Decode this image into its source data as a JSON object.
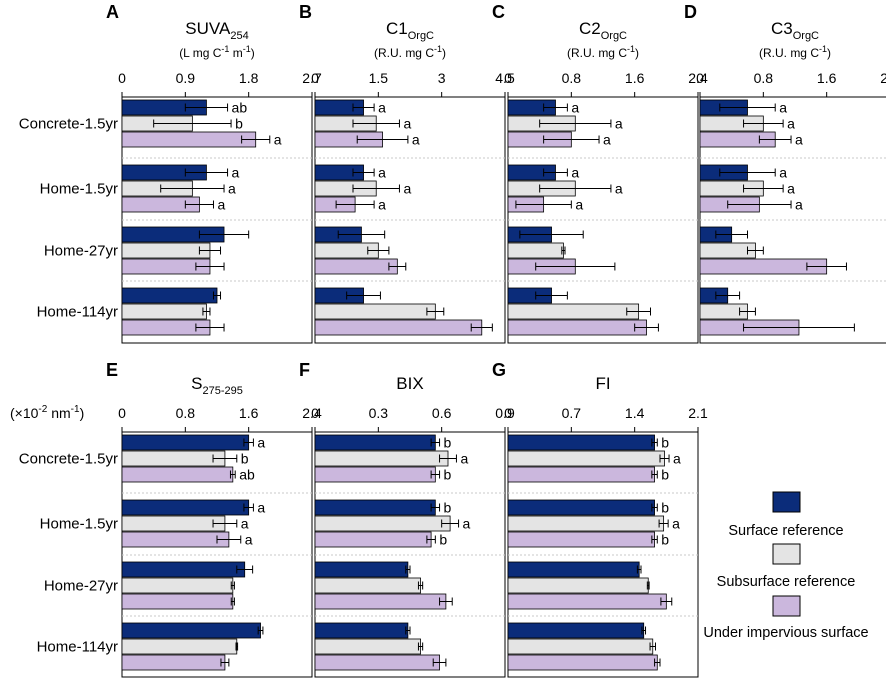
{
  "chart_data": {
    "type": "bar",
    "orientation": "horizontal",
    "sites": [
      "Concrete-1.5yr",
      "Home-1.5yr",
      "Home-27yr",
      "Home-114yr"
    ],
    "series": [
      {
        "name": "Surface reference",
        "color": "#0b2c7a"
      },
      {
        "name": "Subsurface reference",
        "color": "#e4e4e4"
      },
      {
        "name": "Under impervious surface",
        "color": "#cbb7dd"
      }
    ],
    "y_unit_label": "(×10-2 nm-1)",
    "y_unit_parts": {
      "pre": "(×10",
      "sup": "-2",
      "mid": " nm",
      "sup2": "-1",
      "post": ")"
    },
    "panels": [
      {
        "letter": "A",
        "title": "SUVA",
        "title_sub": "254",
        "unit": "(L mg C-1 m-1)",
        "unit_parts": [
          "(L mg C",
          "-1",
          " m",
          "-1",
          ")"
        ],
        "xlim": [
          0,
          2.7
        ],
        "ticks": [
          "0",
          "0.9",
          "1.8",
          "2.7"
        ],
        "values": [
          [
            1.2,
            1.0,
            1.9
          ],
          [
            1.2,
            1.0,
            1.1
          ],
          [
            1.45,
            1.25,
            1.25
          ],
          [
            1.35,
            1.2,
            1.25
          ]
        ],
        "errors": [
          [
            0.3,
            0.55,
            0.2
          ],
          [
            0.3,
            0.45,
            0.2
          ],
          [
            0.35,
            0.15,
            0.2
          ],
          [
            0.05,
            0.05,
            0.2
          ]
        ],
        "letters": [
          [
            "ab",
            "b",
            "a"
          ],
          [
            "a",
            "a",
            "a"
          ],
          [
            "",
            "",
            ""
          ],
          [
            "",
            "",
            ""
          ]
        ]
      },
      {
        "letter": "B",
        "title": "C1",
        "title_sub": "OrgC",
        "unit": "(R.U. mg C-1)",
        "unit_parts": [
          "(R.U. mg C",
          "-1",
          ")"
        ],
        "xlim": [
          0,
          4.5
        ],
        "ticks": [
          "0",
          "1.5",
          "3",
          "4.5"
        ],
        "values": [
          [
            1.15,
            1.45,
            1.6
          ],
          [
            1.15,
            1.45,
            0.95
          ],
          [
            1.1,
            1.5,
            1.95
          ],
          [
            1.15,
            2.85,
            3.95
          ]
        ],
        "errors": [
          [
            0.25,
            0.55,
            0.6
          ],
          [
            0.25,
            0.55,
            0.45
          ],
          [
            0.55,
            0.25,
            0.2
          ],
          [
            0.4,
            0.2,
            0.25
          ]
        ],
        "letters": [
          [
            "a",
            "a",
            "a"
          ],
          [
            "a",
            "a",
            "a"
          ],
          [
            "",
            "",
            ""
          ],
          [
            "",
            "",
            ""
          ]
        ]
      },
      {
        "letter": "C",
        "title": "C2",
        "title_sub": "OrgC",
        "unit": "(R.U. mg C-1)",
        "unit_parts": [
          "(R.U. mg C",
          "-1",
          ")"
        ],
        "xlim": [
          0,
          2.4
        ],
        "ticks": [
          "0",
          "0.8",
          "1.6",
          "2.4"
        ],
        "values": [
          [
            0.6,
            0.85,
            0.8
          ],
          [
            0.6,
            0.85,
            0.45
          ],
          [
            0.55,
            0.7,
            0.85
          ],
          [
            0.55,
            1.65,
            1.75
          ]
        ],
        "errors": [
          [
            0.15,
            0.45,
            0.35
          ],
          [
            0.15,
            0.45,
            0.35
          ],
          [
            0.4,
            0.02,
            0.5
          ],
          [
            0.2,
            0.15,
            0.15
          ]
        ],
        "letters": [
          [
            "a",
            "a",
            "a"
          ],
          [
            "a",
            "a",
            "a"
          ],
          [
            "",
            "",
            ""
          ],
          [
            "",
            "",
            ""
          ]
        ]
      },
      {
        "letter": "D",
        "title": "C3",
        "title_sub": "OrgC",
        "unit": "(R.U. mg C-1)",
        "unit_parts": [
          "(R.U. mg C",
          "-1",
          ")"
        ],
        "xlim": [
          0,
          2.4
        ],
        "ticks": [
          "0",
          "0.8",
          "1.6",
          "2.4"
        ],
        "values": [
          [
            0.6,
            0.8,
            0.95
          ],
          [
            0.6,
            0.8,
            0.75
          ],
          [
            0.4,
            0.7,
            1.6
          ],
          [
            0.35,
            0.6,
            1.25
          ]
        ],
        "errors": [
          [
            0.35,
            0.25,
            0.2
          ],
          [
            0.35,
            0.25,
            0.4
          ],
          [
            0.2,
            0.1,
            0.25
          ],
          [
            0.15,
            0.1,
            0.7
          ]
        ],
        "letters": [
          [
            "a",
            "a",
            "a"
          ],
          [
            "a",
            "a",
            "a"
          ],
          [
            "",
            "",
            ""
          ],
          [
            "",
            "",
            ""
          ]
        ]
      },
      {
        "letter": "E",
        "title": "S",
        "title_sub": "275-295",
        "unit": "",
        "unit_parts": [],
        "xlim": [
          0,
          2.4
        ],
        "ticks": [
          "0",
          "0.8",
          "1.6",
          "2.4"
        ],
        "values": [
          [
            1.6,
            1.3,
            1.4
          ],
          [
            1.6,
            1.3,
            1.35
          ],
          [
            1.55,
            1.4,
            1.4
          ],
          [
            1.75,
            1.45,
            1.3
          ]
        ],
        "errors": [
          [
            0.06,
            0.15,
            0.03
          ],
          [
            0.06,
            0.15,
            0.15
          ],
          [
            0.1,
            0.02,
            0.02
          ],
          [
            0.03,
            0.01,
            0.05
          ]
        ],
        "letters": [
          [
            "a",
            "b",
            "ab"
          ],
          [
            "a",
            "a",
            "a"
          ],
          [
            "",
            "",
            ""
          ],
          [
            "",
            "",
            ""
          ]
        ]
      },
      {
        "letter": "F",
        "title": "BIX",
        "title_sub": "",
        "unit": "",
        "unit_parts": [],
        "xlim": [
          0,
          0.9
        ],
        "ticks": [
          "0",
          "0.3",
          "0.6",
          "0.9"
        ],
        "values": [
          [
            0.57,
            0.63,
            0.57
          ],
          [
            0.57,
            0.64,
            0.55
          ],
          [
            0.44,
            0.5,
            0.62
          ],
          [
            0.44,
            0.5,
            0.59
          ]
        ],
        "errors": [
          [
            0.02,
            0.04,
            0.02
          ],
          [
            0.02,
            0.04,
            0.02
          ],
          [
            0.01,
            0.01,
            0.03
          ],
          [
            0.01,
            0.01,
            0.03
          ]
        ],
        "letters": [
          [
            "b",
            "a",
            "b"
          ],
          [
            "b",
            "a",
            "b"
          ],
          [
            "",
            "",
            ""
          ],
          [
            "",
            "",
            ""
          ]
        ]
      },
      {
        "letter": "G",
        "title": "FI",
        "title_sub": "",
        "unit": "",
        "unit_parts": [],
        "xlim": [
          0,
          2.1
        ],
        "ticks": [
          "0",
          "0.7",
          "1.4",
          "2.1"
        ],
        "values": [
          [
            1.62,
            1.73,
            1.62
          ],
          [
            1.62,
            1.72,
            1.62
          ],
          [
            1.45,
            1.55,
            1.75
          ],
          [
            1.5,
            1.6,
            1.65
          ]
        ],
        "errors": [
          [
            0.03,
            0.05,
            0.03
          ],
          [
            0.03,
            0.05,
            0.03
          ],
          [
            0.02,
            0.01,
            0.06
          ],
          [
            0.02,
            0.03,
            0.03
          ]
        ],
        "letters": [
          [
            "b",
            "a",
            "b"
          ],
          [
            "b",
            "a",
            "b"
          ],
          [
            "",
            "",
            ""
          ],
          [
            "",
            "",
            ""
          ]
        ]
      }
    ]
  }
}
